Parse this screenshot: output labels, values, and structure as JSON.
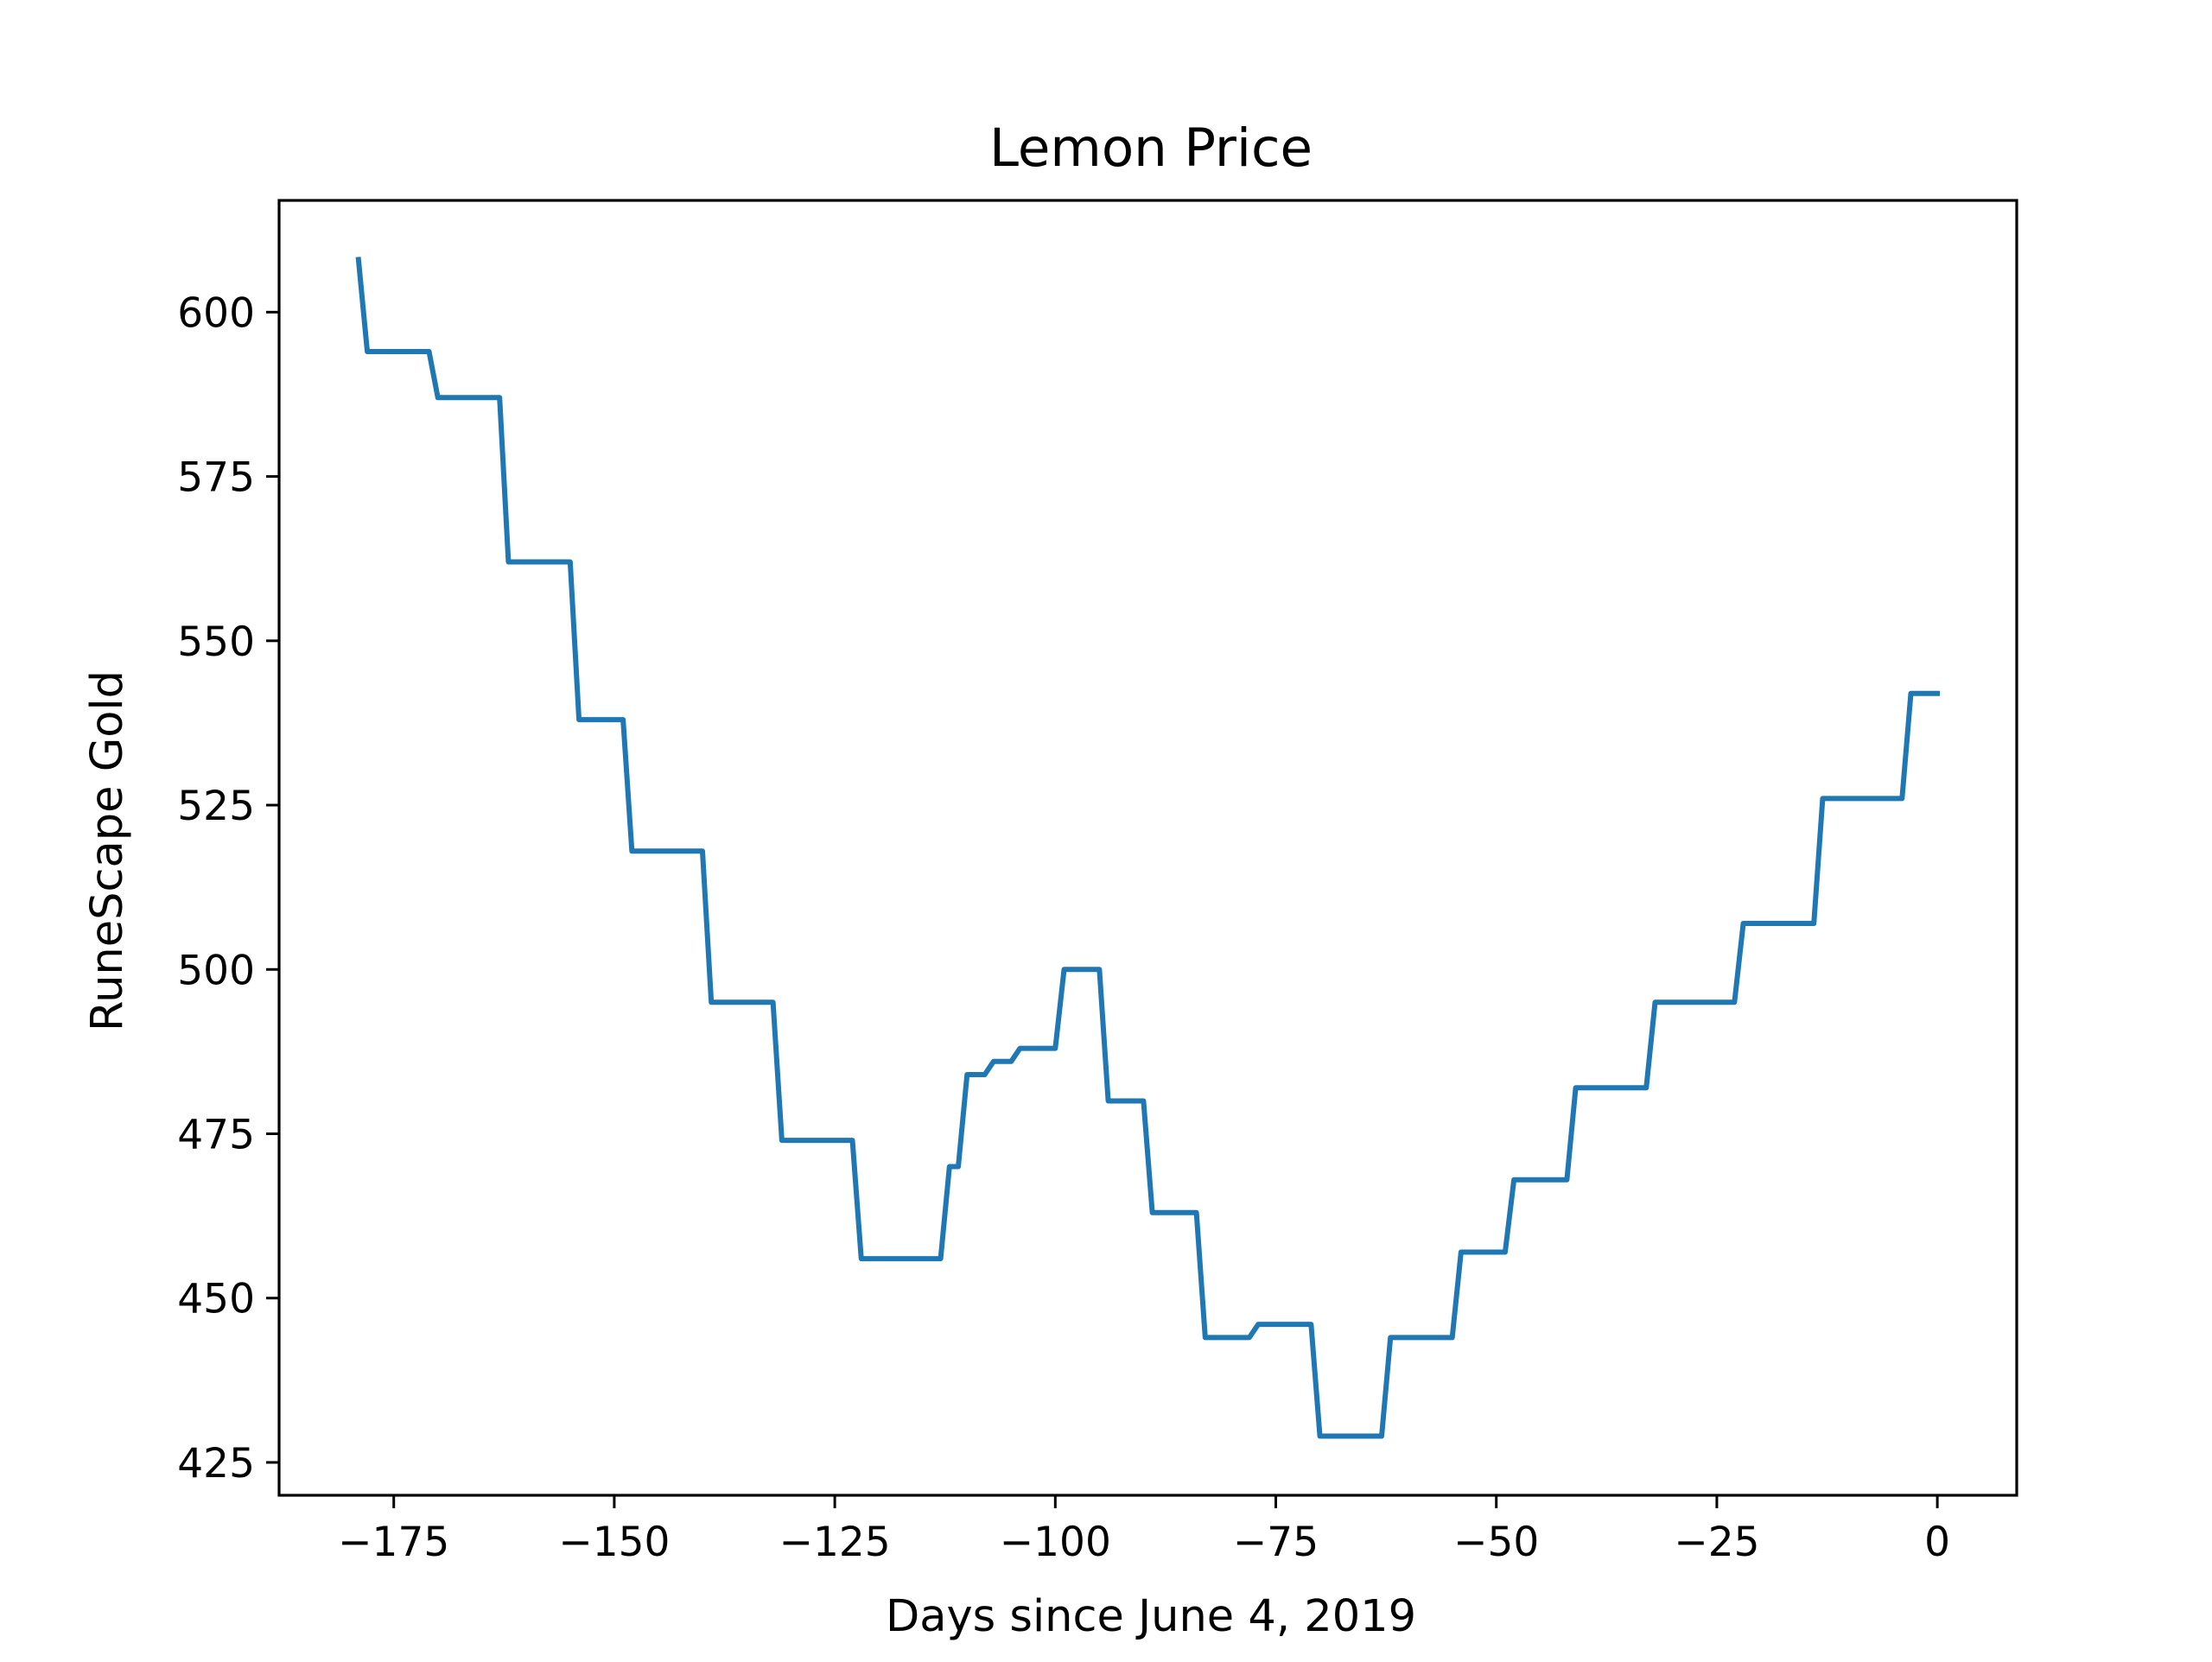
{
  "chart_data": {
    "type": "line",
    "title": "Lemon Price",
    "xlabel": "Days since June 4, 2019",
    "ylabel": "RuneScape Gold",
    "xlim": [
      -188,
      9
    ],
    "ylim": [
      420,
      617
    ],
    "xticks": [
      -175,
      -150,
      -125,
      -100,
      -75,
      -50,
      -25,
      0
    ],
    "xtick_labels": [
      "−175",
      "−150",
      "−125",
      "−100",
      "−75",
      "−50",
      "−25",
      "0"
    ],
    "yticks": [
      425,
      450,
      475,
      500,
      525,
      550,
      575,
      600
    ],
    "ytick_labels": [
      "425",
      "450",
      "475",
      "500",
      "525",
      "550",
      "575",
      "600"
    ],
    "grid": false,
    "line_color": "#1f77b4",
    "series": [
      {
        "x": [
          -179,
          -178,
          -171,
          -170,
          -163,
          -162,
          -155,
          -154,
          -149,
          -148,
          -140,
          -139,
          -132,
          -131,
          -123,
          -122,
          -113,
          -112,
          -111,
          -110,
          -108,
          -107,
          -105,
          -104,
          -100,
          -99,
          -95,
          -94,
          -90,
          -89,
          -84,
          -83,
          -78,
          -77,
          -71,
          -70,
          -63,
          -62,
          -55,
          -54,
          -49,
          -48,
          -42,
          -41,
          -33,
          -32,
          -23,
          -22,
          -14,
          -13,
          -4,
          -3,
          0
        ],
        "y": [
          608,
          594,
          594,
          587,
          587,
          562,
          562,
          538,
          538,
          518,
          518,
          495,
          495,
          474,
          474,
          456,
          456,
          470,
          470,
          484,
          484,
          486,
          486,
          488,
          488,
          500,
          500,
          480,
          480,
          463,
          463,
          444,
          444,
          446,
          446,
          429,
          429,
          444,
          444,
          457,
          457,
          468,
          468,
          482,
          482,
          495,
          495,
          507,
          507,
          526,
          526,
          542,
          542
        ]
      }
    ]
  }
}
